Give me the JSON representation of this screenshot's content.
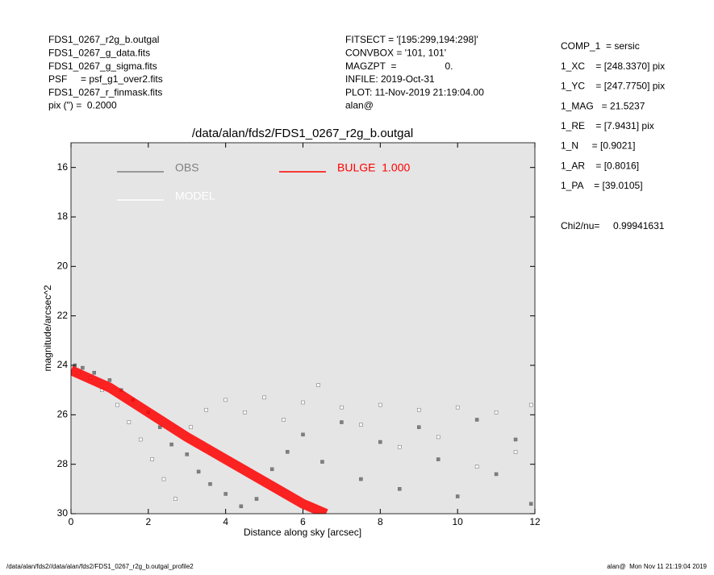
{
  "header_left": [
    "FDS1_0267_r2g_b.outgal",
    "FDS1_0267_g_data.fits",
    "FDS1_0267_g_sigma.fits",
    "PSF     = psf_g1_over2.fits",
    "FDS1_0267_r_finmask.fits",
    "pix (\") =  0.2000"
  ],
  "header_mid": [
    "FITSECT = '[195:299,194:298]'",
    "CONVBOX = '101, 101'",
    "MAGZPT  =                  0.",
    "INFILE: 2019-Oct-31",
    "PLOT: 11-Nov-2019 21:19:04.00",
    "alan@"
  ],
  "header_right": [
    "COMP_1  = sersic",
    "1_XC    = [248.3370] pix",
    "1_YC    = [247.7750] pix",
    "1_MAG   = 21.5237",
    "1_RE    = [7.9431] pix",
    "1_N     = [0.9021]",
    "1_AR    = [0.8016]",
    "1_PA    = [39.0105]"
  ],
  "chi2": "Chi2/nu=     0.99941631",
  "footer_left": "/data/alan/fds2//data/alan/fds2/FDS1_0267_r2g_b.outgal_profile2",
  "footer_right": "alan@  Mon Nov 11 21:19:04 2019",
  "chart_data": {
    "type": "scatter",
    "title": "/data/alan/fds2/FDS1_0267_r2g_b.outgal",
    "x_label": "Distance along sky [arcsec]",
    "y_label": "magnitude/arcsec^2",
    "xlim": [
      0,
      12
    ],
    "ylim": [
      30,
      15
    ],
    "xticks": [
      0,
      2,
      4,
      6,
      8,
      10,
      12
    ],
    "yticks": [
      16,
      18,
      20,
      22,
      24,
      26,
      28,
      30
    ],
    "legend": "upper left",
    "background": "#e5e5e5",
    "series": [
      {
        "name": "OBS",
        "color": "#808080",
        "kind": "points",
        "x": [
          0.1,
          0.3,
          0.6,
          1.0,
          1.3,
          1.6,
          2.0,
          2.3,
          2.6,
          3.0,
          3.3,
          3.6,
          4.0,
          4.4,
          4.8,
          5.2,
          5.6,
          6.0,
          6.5,
          7.0,
          7.5,
          8.0,
          8.5,
          9.0,
          9.5,
          10.0,
          10.5,
          11.0,
          11.5,
          11.9
        ],
        "values": [
          24.0,
          24.1,
          24.3,
          24.6,
          25.0,
          25.4,
          25.9,
          26.5,
          27.2,
          27.6,
          28.3,
          28.8,
          29.2,
          29.7,
          29.4,
          28.2,
          27.5,
          26.8,
          27.9,
          26.3,
          28.6,
          27.1,
          29.0,
          26.5,
          27.8,
          29.3,
          26.2,
          28.4,
          27.0,
          29.6
        ]
      },
      {
        "name": "MODEL",
        "color": "#ffffff",
        "kind": "points",
        "x": [
          0.2,
          0.5,
          0.8,
          1.2,
          1.5,
          1.8,
          2.1,
          2.4,
          2.7,
          3.1,
          3.5,
          4.0,
          4.5,
          5.0,
          5.5,
          6.0,
          6.4,
          7.0,
          7.5,
          8.0,
          8.5,
          9.0,
          9.5,
          10.0,
          10.5,
          11.0,
          11.5,
          11.9
        ],
        "values": [
          24.3,
          24.5,
          25.0,
          25.6,
          26.3,
          27.0,
          27.8,
          28.6,
          29.4,
          26.5,
          25.8,
          25.4,
          25.9,
          25.3,
          26.2,
          25.5,
          24.8,
          25.7,
          26.4,
          25.6,
          27.3,
          25.8,
          26.9,
          25.7,
          28.1,
          25.9,
          27.5,
          25.6
        ]
      },
      {
        "name": "BULGE  1.000",
        "color": "#ff0000",
        "kind": "band",
        "x": [
          0,
          1,
          2,
          3,
          4,
          5,
          6,
          6.6
        ],
        "values": [
          24.2,
          24.9,
          25.9,
          26.9,
          27.8,
          28.7,
          29.6,
          30
        ]
      }
    ]
  }
}
